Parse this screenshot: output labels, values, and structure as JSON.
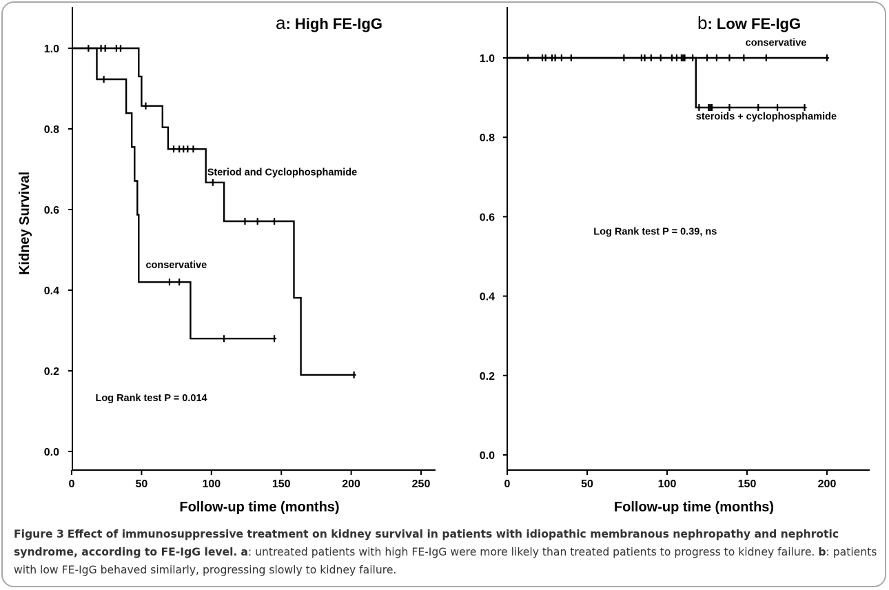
{
  "chart_data": [
    {
      "type": "line",
      "panel": "a",
      "title_letter": "a",
      "title_rest": ": High FE-IgG",
      "xlabel": "Follow-up time (months)",
      "ylabel": "Kidney Survival",
      "xlim": [
        0,
        260
      ],
      "ylim": [
        -0.04,
        1.06
      ],
      "xticks": [
        0,
        50,
        100,
        150,
        200,
        250
      ],
      "yticks": [
        0.0,
        0.2,
        0.4,
        0.6,
        0.8,
        1.0
      ],
      "grid": false,
      "annotations": [
        {
          "text": "Steriod and Cyclophosphamide",
          "x": 97,
          "y": 0.685
        },
        {
          "text": "conservative",
          "x": 53,
          "y": 0.455
        },
        {
          "text": "Log Rank test P = 0.014",
          "x": 17,
          "y": 0.125
        }
      ],
      "series": [
        {
          "name": "Steriod and Cyclophosphamide",
          "steps": [
            [
              0,
              1.0
            ],
            [
              48,
              1.0
            ],
            [
              48,
              0.93
            ],
            [
              50,
              0.93
            ],
            [
              50,
              0.857
            ],
            [
              65,
              0.857
            ],
            [
              65,
              0.804
            ],
            [
              69,
              0.804
            ],
            [
              69,
              0.75
            ],
            [
              96,
              0.75
            ],
            [
              96,
              0.667
            ],
            [
              109,
              0.667
            ],
            [
              109,
              0.571
            ],
            [
              159,
              0.571
            ],
            [
              159,
              0.381
            ],
            [
              164,
              0.381
            ],
            [
              164,
              0.19
            ],
            [
              202,
              0.19
            ]
          ],
          "censored": [
            [
              12,
              1.0
            ],
            [
              21,
              1.0
            ],
            [
              24,
              1.0
            ],
            [
              32,
              1.0
            ],
            [
              35,
              1.0
            ],
            [
              53,
              0.857
            ],
            [
              73,
              0.75
            ],
            [
              77,
              0.75
            ],
            [
              80,
              0.75
            ],
            [
              83,
              0.75
            ],
            [
              87,
              0.75
            ],
            [
              101,
              0.667
            ],
            [
              124,
              0.571
            ],
            [
              133,
              0.571
            ],
            [
              145,
              0.571
            ],
            [
              202,
              0.19
            ]
          ]
        },
        {
          "name": "conservative",
          "steps": [
            [
              0,
              1.0
            ],
            [
              18,
              1.0
            ],
            [
              18,
              0.923
            ],
            [
              39,
              0.923
            ],
            [
              39,
              0.839
            ],
            [
              43,
              0.839
            ],
            [
              43,
              0.755
            ],
            [
              45,
              0.755
            ],
            [
              45,
              0.671
            ],
            [
              47,
              0.671
            ],
            [
              47,
              0.587
            ],
            [
              48,
              0.587
            ],
            [
              48,
              0.42
            ],
            [
              85,
              0.42
            ],
            [
              85,
              0.28
            ],
            [
              145,
              0.28
            ]
          ],
          "censored": [
            [
              23,
              0.923
            ],
            [
              70,
              0.42
            ],
            [
              77,
              0.42
            ],
            [
              109,
              0.28
            ],
            [
              145,
              0.28
            ]
          ]
        }
      ]
    },
    {
      "type": "line",
      "panel": "b",
      "title_letter": "b",
      "title_rest": ": Low FE-IgG",
      "xlabel": "Follow-up time (months)",
      "ylabel": "",
      "xlim": [
        0,
        210
      ],
      "ylim": [
        -0.06,
        1.06
      ],
      "xticks": [
        0,
        50,
        100,
        150,
        200
      ],
      "yticks": [
        0.0,
        0.2,
        0.4,
        0.6,
        0.8,
        1.0
      ],
      "grid": false,
      "annotations": [
        {
          "text": "conservative",
          "x": 149,
          "y": 1.03
        },
        {
          "text": "steroids + cyclophosphamide",
          "x": 118,
          "y": 0.845
        },
        {
          "text": "Log Rank test P = 0.39, ns",
          "x": 54,
          "y": 0.555
        }
      ],
      "series": [
        {
          "name": "conservative",
          "steps": [
            [
              0,
              1.0
            ],
            [
              200,
              1.0
            ]
          ],
          "censored": [
            [
              13,
              1.0
            ],
            [
              22,
              1.0
            ],
            [
              24,
              1.0
            ],
            [
              28,
              1.0
            ],
            [
              30,
              1.0
            ],
            [
              34,
              1.0
            ],
            [
              40,
              1.0
            ],
            [
              73,
              1.0
            ],
            [
              84,
              1.0
            ],
            [
              86,
              1.0
            ],
            [
              90,
              1.0
            ],
            [
              96,
              1.0
            ],
            [
              103,
              1.0
            ],
            [
              106,
              1.0
            ],
            [
              109,
              1.0
            ],
            [
              110,
              1.0
            ],
            [
              111,
              1.0
            ],
            [
              116,
              1.0
            ],
            [
              125,
              1.0
            ],
            [
              131,
              1.0
            ],
            [
              139,
              1.0
            ],
            [
              148,
              1.0
            ],
            [
              162,
              1.0
            ],
            [
              200,
              1.0
            ]
          ]
        },
        {
          "name": "steroids + cyclophosphamide",
          "steps": [
            [
              0,
              1.0
            ],
            [
              118,
              1.0
            ],
            [
              118,
              0.875
            ],
            [
              186,
              0.875
            ]
          ],
          "censored": [
            [
              120,
              0.875
            ],
            [
              126,
              0.875
            ],
            [
              127,
              0.875
            ],
            [
              128,
              0.875
            ],
            [
              139,
              0.875
            ],
            [
              157,
              0.875
            ],
            [
              169,
              0.875
            ],
            [
              186,
              0.875
            ]
          ]
        }
      ]
    }
  ],
  "caption": {
    "label": "Figure 3",
    "title": "Effect of immunosuppressive treatment on kidney survival in patients with idiopathic membranous nephropathy and nephrotic syndrome, according to FE-IgG level.",
    "a_letter": "a",
    "a_text": ": untreated patients with high FE-IgG were more likely than treated patients to progress to kidney failure.",
    "b_letter": "b",
    "b_text": ": patients with low FE-IgG behaved similarly, progressing slowly to kidney failure."
  }
}
